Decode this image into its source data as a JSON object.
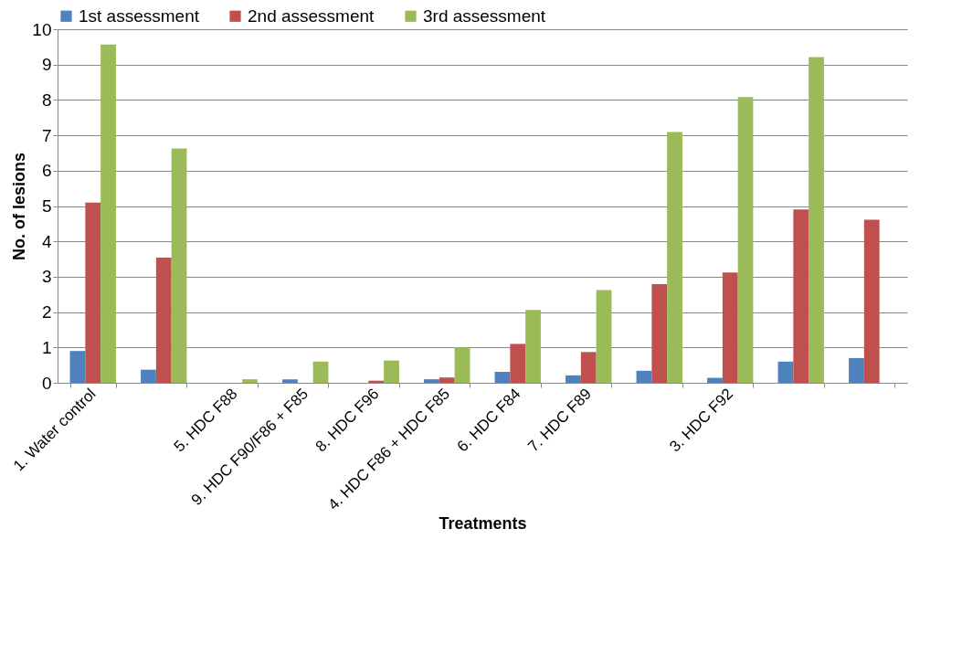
{
  "chart_data": {
    "type": "bar",
    "xlabel": "Treatments",
    "ylabel": "No. of lesions",
    "categories": [
      "1. Water control",
      null,
      "5. HDC F88",
      "9. HDC F90/F86 + F85",
      "8. HDC F96",
      "4. HDC F86 + HDC F85",
      "6. HDC F84",
      "7. HDC F89",
      null,
      "3. HDC F92",
      null,
      null
    ],
    "series": [
      {
        "name": "1st assessment",
        "color": "#4f81bd",
        "values": [
          0.9,
          0.37,
          0,
          0.1,
          0,
          0.1,
          0.31,
          0.21,
          0.34,
          0.14,
          0.6,
          0.7
        ]
      },
      {
        "name": "2nd assessment",
        "color": "#c0504d",
        "values": [
          5.1,
          3.54,
          0,
          0,
          0.06,
          0.15,
          1.1,
          0.87,
          2.79,
          3.12,
          4.9,
          4.61
        ]
      },
      {
        "name": "3rd assessment",
        "color": "#9bbb59",
        "values": [
          9.57,
          6.63,
          0.1,
          0.6,
          0.63,
          1.0,
          2.06,
          2.62,
          7.09,
          8.08,
          9.21,
          null
        ]
      }
    ],
    "ylim": [
      0,
      10
    ],
    "yticks": [
      0,
      1,
      2,
      3,
      4,
      5,
      6,
      7,
      8,
      9,
      10
    ],
    "grid": "y",
    "legend": "top"
  }
}
